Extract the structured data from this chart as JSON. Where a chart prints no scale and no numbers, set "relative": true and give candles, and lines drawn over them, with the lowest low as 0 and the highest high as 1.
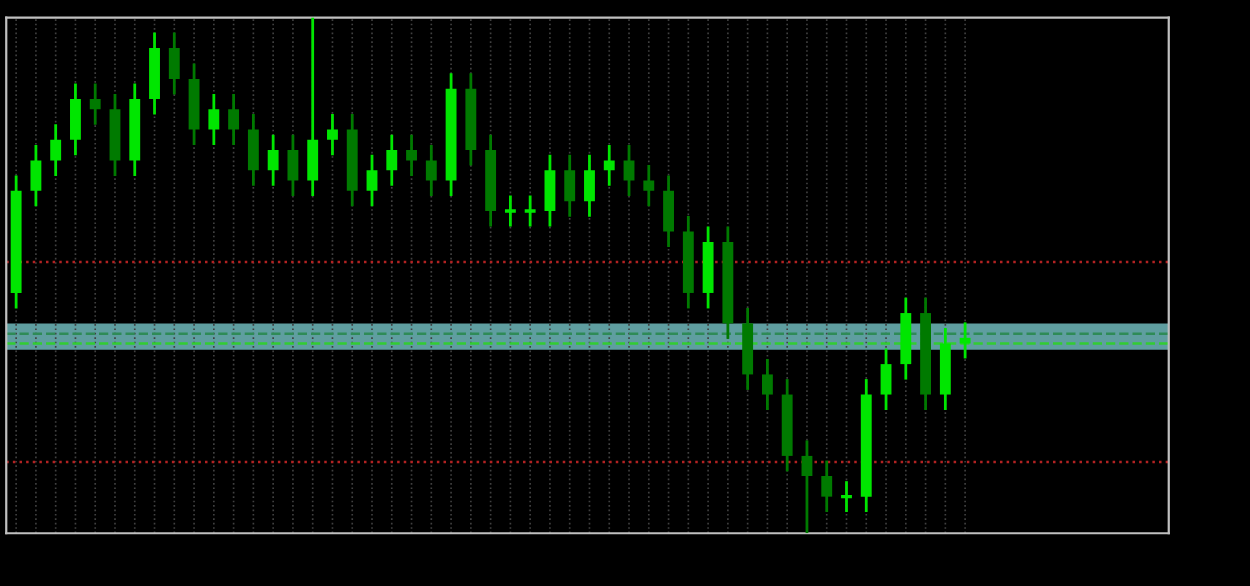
{
  "chart_data": {
    "type": "candlestick",
    "relative": true,
    "grid": true,
    "colors": [
      "#00e600",
      "#00e600",
      "#00e600",
      "#00e600",
      "#007a00",
      "#007a00",
      "#00e600",
      "#00e600",
      "#007a00",
      "#007a00",
      "#00e600",
      "#007a00",
      "#007a00",
      "#00e600",
      "#007a00",
      "#00e600",
      "#00e600",
      "#007a00",
      "#00e600",
      "#00e600",
      "#007a00",
      "#007a00",
      "#00e600",
      "#007a00",
      "#007a00",
      "#00e600",
      "#00e600",
      "#00e600",
      "#007a00",
      "#00e600",
      "#00e600",
      "#007a00",
      "#007a00",
      "#007a00",
      "#007a00",
      "#00e600",
      "#007a00",
      "#007a00",
      "#007a00",
      "#007a00",
      "#007a00",
      "#007a00",
      "#00e600",
      "#00e600",
      "#00e600",
      "#00e600",
      "#007a00",
      "#00e600",
      "#00e600"
    ],
    "categories": [
      null,
      null,
      null,
      null,
      null,
      null,
      null,
      null,
      null,
      null,
      null,
      null,
      null,
      null,
      null,
      null,
      null,
      null,
      null,
      null,
      null,
      null,
      null,
      null,
      null,
      null,
      null,
      null,
      null,
      null,
      null,
      null,
      null,
      null,
      null,
      null,
      null,
      null,
      null,
      null,
      null,
      null,
      null,
      null,
      null,
      null,
      null,
      null,
      null
    ],
    "ohlc": [
      [
        0.466,
        0.694,
        0.436,
        0.664
      ],
      [
        0.664,
        0.753,
        0.634,
        0.723
      ],
      [
        0.723,
        0.793,
        0.693,
        0.763
      ],
      [
        0.763,
        0.872,
        0.733,
        0.842
      ],
      [
        0.842,
        0.872,
        0.792,
        0.822
      ],
      [
        0.822,
        0.852,
        0.693,
        0.723
      ],
      [
        0.723,
        0.872,
        0.693,
        0.842
      ],
      [
        0.842,
        0.971,
        0.812,
        0.941
      ],
      [
        0.941,
        0.971,
        0.851,
        0.881
      ],
      [
        0.881,
        0.911,
        0.753,
        0.783
      ],
      [
        0.783,
        0.852,
        0.753,
        0.822
      ],
      [
        0.822,
        0.852,
        0.753,
        0.783
      ],
      [
        0.783,
        0.813,
        0.674,
        0.704
      ],
      [
        0.704,
        0.773,
        0.674,
        0.743
      ],
      [
        0.743,
        0.773,
        0.654,
        0.684
      ],
      [
        0.684,
        1.0,
        0.654,
        0.763
      ],
      [
        0.763,
        0.813,
        0.733,
        0.783
      ],
      [
        0.783,
        0.813,
        0.634,
        0.664
      ],
      [
        0.664,
        0.734,
        0.634,
        0.704
      ],
      [
        0.704,
        0.773,
        0.674,
        0.743
      ],
      [
        0.743,
        0.773,
        0.693,
        0.723
      ],
      [
        0.723,
        0.753,
        0.654,
        0.684
      ],
      [
        0.684,
        0.892,
        0.654,
        0.862
      ],
      [
        0.862,
        0.892,
        0.713,
        0.743
      ],
      [
        0.743,
        0.773,
        0.595,
        0.625
      ],
      [
        0.625,
        0.655,
        0.595,
        0.625
      ],
      [
        0.625,
        0.655,
        0.595,
        0.625
      ],
      [
        0.625,
        0.734,
        0.595,
        0.704
      ],
      [
        0.704,
        0.734,
        0.614,
        0.644
      ],
      [
        0.644,
        0.734,
        0.614,
        0.704
      ],
      [
        0.704,
        0.753,
        0.674,
        0.723
      ],
      [
        0.723,
        0.753,
        0.654,
        0.684
      ],
      [
        0.684,
        0.714,
        0.634,
        0.664
      ],
      [
        0.664,
        0.694,
        0.555,
        0.585
      ],
      [
        0.585,
        0.615,
        0.436,
        0.466
      ],
      [
        0.466,
        0.595,
        0.436,
        0.565
      ],
      [
        0.565,
        0.595,
        0.377,
        0.407
      ],
      [
        0.407,
        0.437,
        0.278,
        0.308
      ],
      [
        0.308,
        0.338,
        0.239,
        0.269
      ],
      [
        0.269,
        0.299,
        0.12,
        0.15
      ],
      [
        0.15,
        0.18,
        0.0,
        0.111
      ],
      [
        0.111,
        0.141,
        0.041,
        0.071
      ],
      [
        0.071,
        0.101,
        0.041,
        0.071
      ],
      [
        0.071,
        0.299,
        0.041,
        0.269
      ],
      [
        0.269,
        0.358,
        0.239,
        0.328
      ],
      [
        0.328,
        0.457,
        0.298,
        0.427
      ],
      [
        0.427,
        0.457,
        0.239,
        0.269
      ],
      [
        0.269,
        0.398,
        0.239,
        0.368
      ],
      [
        0.368,
        0.409,
        0.339,
        0.379
      ]
    ],
    "ref_lines": [
      {
        "axis": "y",
        "value": 0.526,
        "color": "#b22222",
        "line_style": "dotted"
      },
      {
        "axis": "y",
        "value": 0.387,
        "color": "#2e8b57",
        "line_style": "dashed"
      },
      {
        "axis": "y",
        "value": 0.368,
        "color": "#32cd32",
        "line_style": "dashed"
      },
      {
        "axis": "y",
        "value": 0.138,
        "color": "#b22222",
        "line_style": "dotted"
      }
    ],
    "bands": [
      {
        "axis": "y",
        "from": 0.356,
        "to": 0.407,
        "color": "#5f9ea0"
      }
    ]
  }
}
